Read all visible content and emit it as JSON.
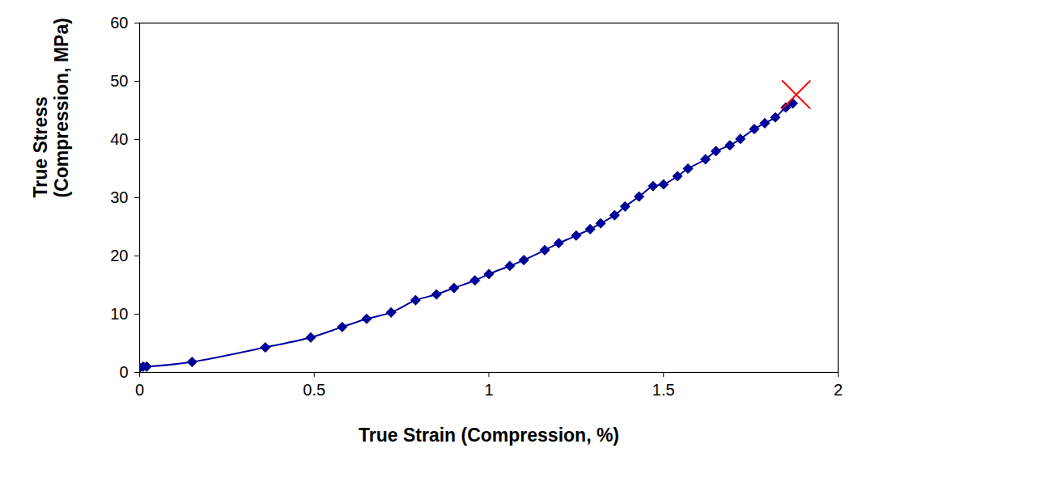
{
  "chart_data": {
    "type": "line",
    "x_label": "True Strain (Compression, %)",
    "y_label": "True Stress (Compression, MPa)",
    "xlim": [
      0,
      2
    ],
    "xticks": [
      0,
      0.5,
      1,
      1.5,
      2
    ],
    "ylim": [
      0,
      60
    ],
    "yticks": [
      0,
      10,
      20,
      30,
      40,
      50,
      60
    ],
    "grid": false,
    "series": [
      {
        "color": "#0000a0",
        "marker": "diamond",
        "line_style": "solid",
        "x": [
          0,
          0.01,
          0.02,
          0.15,
          0.36,
          0.49,
          0.58,
          0.65,
          0.72,
          0.79,
          0.85,
          0.9,
          0.96,
          1.0,
          1.06,
          1.1,
          1.16,
          1.2,
          1.25,
          1.29,
          1.32,
          1.36,
          1.39,
          1.43,
          1.47,
          1.5,
          1.54,
          1.57,
          1.62,
          1.65,
          1.69,
          1.72,
          1.76,
          1.79,
          1.82,
          1.85,
          1.87
        ],
        "values": [
          0.8,
          1.0,
          1.0,
          1.8,
          4.3,
          6.0,
          7.8,
          9.2,
          10.3,
          12.4,
          13.4,
          14.5,
          15.8,
          16.9,
          18.3,
          19.3,
          21.0,
          22.2,
          23.5,
          24.6,
          25.6,
          27.0,
          28.5,
          30.2,
          32.0,
          32.3,
          33.7,
          35.0,
          36.6,
          38.0,
          39.0,
          40.1,
          41.8,
          42.8,
          43.8,
          45.5,
          46.2
        ]
      }
    ],
    "failure": {
      "x": 1.88,
      "y": 47.7,
      "marker": "x",
      "color": "#ff0000"
    }
  }
}
